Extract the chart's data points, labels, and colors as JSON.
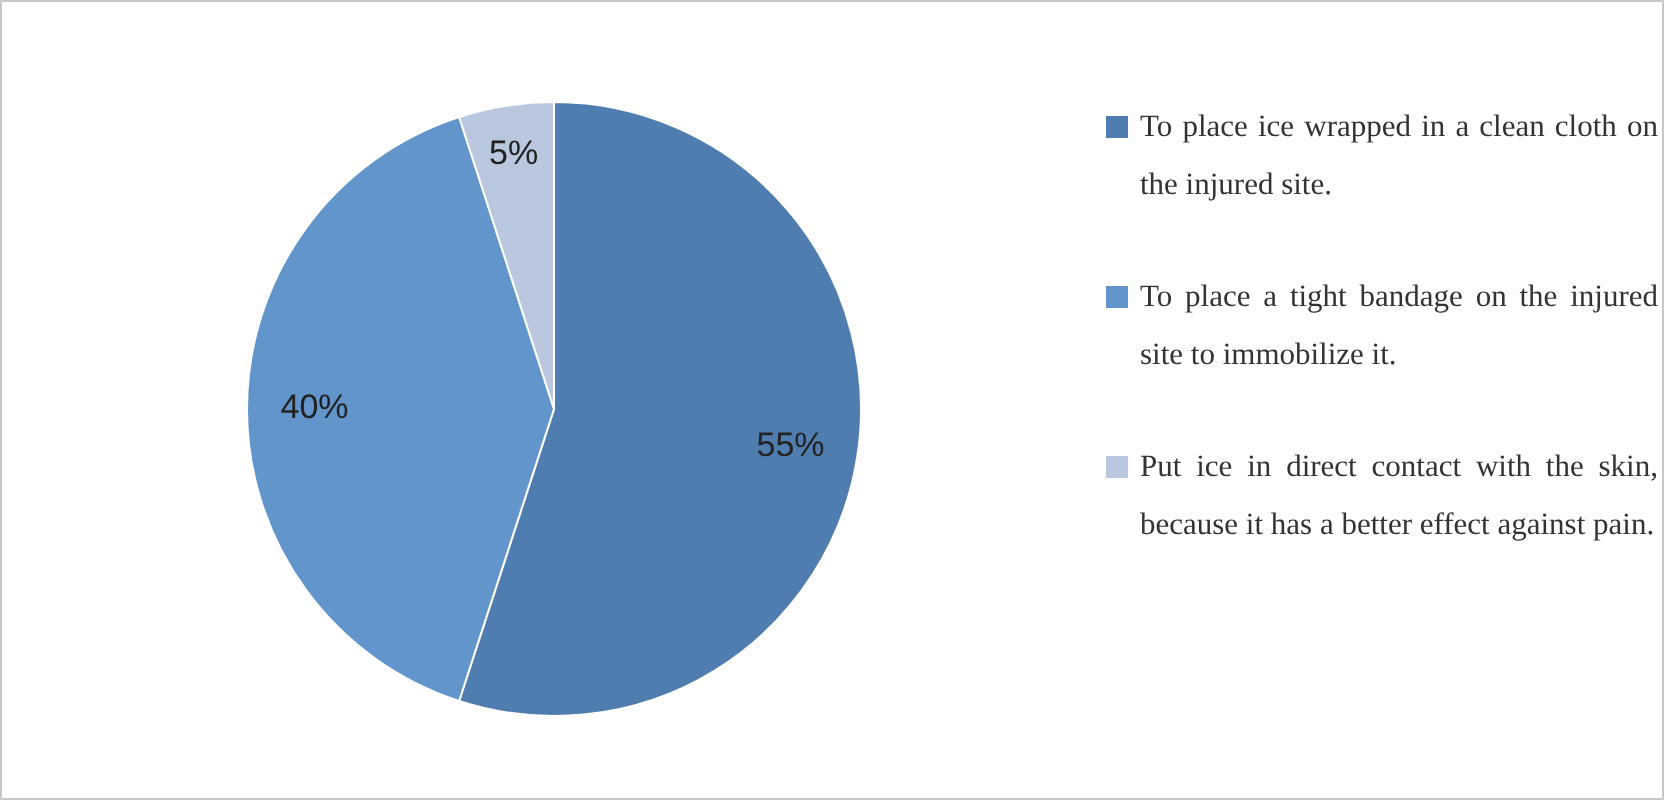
{
  "chart_data": {
    "type": "pie",
    "categories": [
      "To place ice wrapped in a clean cloth on the injured site.",
      "To place a tight bandage on the injured site to immobilize it.",
      "Put ice in direct contact with the skin, because it has a better effect against pain."
    ],
    "values": [
      55,
      40,
      5
    ],
    "colors": [
      "#4f7db0",
      "#6195cb",
      "#b9c8df"
    ],
    "value_labels": [
      "55%",
      "40%",
      "5%"
    ],
    "legend": "right"
  }
}
